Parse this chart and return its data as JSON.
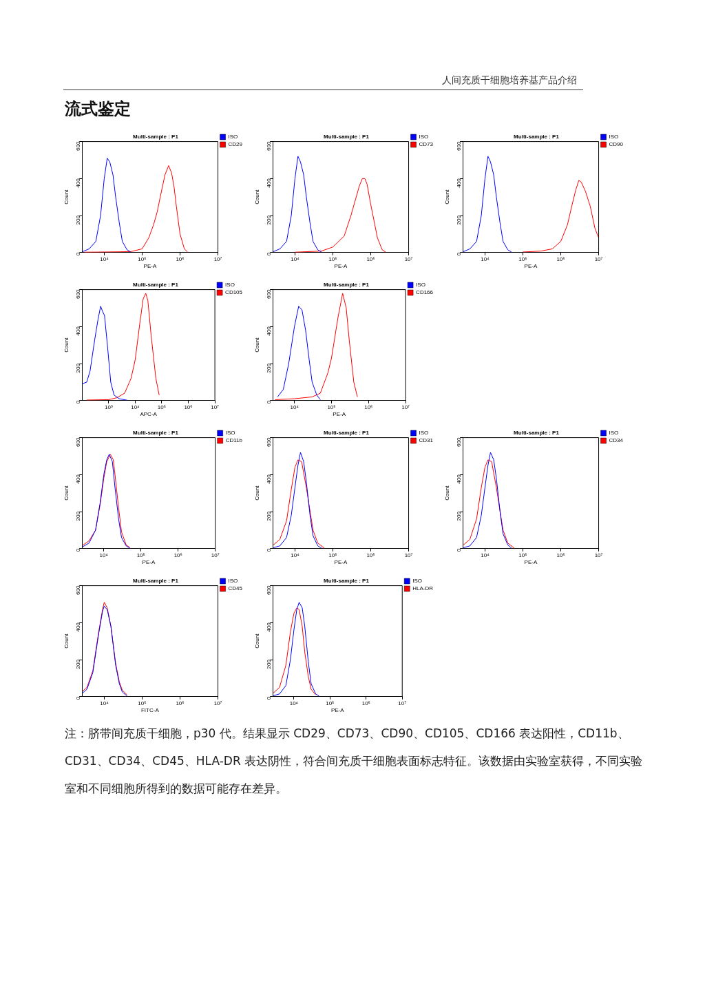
{
  "chart_data": [
    {
      "type": "line",
      "title": "Multi-sample : P1",
      "xlabel": "PE-A",
      "ylabel": "Count",
      "log": "x",
      "legend": "right",
      "grid": false,
      "marker": "none",
      "xlim": [
        2600,
        10000000
      ],
      "ylim": [
        0,
        600
      ],
      "yticks": [
        0,
        200,
        400,
        600
      ],
      "xticks": [
        {
          "value": 10000,
          "label": "10⁴"
        },
        {
          "value": 100000,
          "label": "10⁵"
        },
        {
          "value": 1000000,
          "label": "10⁶"
        },
        {
          "value": 10000000,
          "label": "10⁷"
        }
      ],
      "annotations": [
        "人间充质干细胞培养基产品介绍",
        "流式鉴定"
      ],
      "series": [
        {
          "name": "ISO",
          "color": "#0000ff",
          "x": [
            2700,
            4000,
            6000,
            8000,
            10000,
            12000,
            14000,
            17000,
            20000,
            25000,
            30000,
            40000,
            50000
          ],
          "values": [
            5,
            20,
            60,
            200,
            400,
            510,
            490,
            420,
            300,
            160,
            60,
            15,
            3
          ]
        },
        {
          "name": "CD29",
          "color": "#ff0000",
          "x": [
            3000,
            10000,
            50000,
            100000,
            150000,
            200000,
            250000,
            300000,
            400000,
            500000,
            600000,
            700000,
            800000,
            1000000,
            1300000,
            1600000
          ],
          "values": [
            2,
            3,
            5,
            20,
            80,
            150,
            220,
            300,
            420,
            470,
            430,
            350,
            250,
            100,
            20,
            2
          ]
        }
      ]
    },
    {
      "type": "line",
      "title": "Multi-sample : P1",
      "xlabel": "PE-A",
      "ylabel": "Count",
      "log": "x",
      "legend": "right",
      "grid": false,
      "marker": "none",
      "xlim": [
        2600,
        10000000
      ],
      "ylim": [
        0,
        600
      ],
      "yticks": [
        0,
        200,
        400,
        600
      ],
      "xticks": [
        {
          "value": 10000,
          "label": "10⁴"
        },
        {
          "value": 100000,
          "label": "10⁵"
        },
        {
          "value": 1000000,
          "label": "10⁶"
        },
        {
          "value": 10000000,
          "label": "10⁷"
        }
      ],
      "series": [
        {
          "name": "ISO",
          "color": "#0000ff",
          "x": [
            2700,
            4000,
            6000,
            8000,
            10000,
            12000,
            14000,
            17000,
            20000,
            25000,
            30000,
            40000,
            50000
          ],
          "values": [
            5,
            20,
            60,
            200,
            400,
            520,
            490,
            420,
            300,
            160,
            60,
            15,
            3
          ]
        },
        {
          "name": "CD73",
          "color": "#ff0000",
          "x": [
            10000,
            50000,
            100000,
            200000,
            300000,
            400000,
            500000,
            600000,
            700000,
            800000,
            1000000,
            1500000,
            2000000,
            2500000
          ],
          "values": [
            2,
            8,
            30,
            90,
            200,
            290,
            360,
            400,
            400,
            370,
            260,
            80,
            15,
            2
          ]
        }
      ]
    },
    {
      "type": "line",
      "title": "Multi-sample : P1",
      "xlabel": "PE-A",
      "ylabel": "Count",
      "log": "x",
      "legend": "right",
      "grid": false,
      "marker": "none",
      "xlim": [
        2600,
        10000000
      ],
      "ylim": [
        0,
        600
      ],
      "yticks": [
        0,
        200,
        400,
        600
      ],
      "xticks": [
        {
          "value": 10000,
          "label": "10⁴"
        },
        {
          "value": 100000,
          "label": "10⁵"
        },
        {
          "value": 1000000,
          "label": "10⁶"
        },
        {
          "value": 10000000,
          "label": "10⁷"
        }
      ],
      "series": [
        {
          "name": "ISO",
          "color": "#0000ff",
          "x": [
            2700,
            4000,
            6000,
            8000,
            10000,
            12000,
            14000,
            17000,
            20000,
            25000,
            30000,
            40000,
            50000
          ],
          "values": [
            5,
            20,
            60,
            200,
            400,
            520,
            490,
            420,
            300,
            160,
            60,
            15,
            3
          ]
        },
        {
          "name": "CD90",
          "color": "#ff0000",
          "x": [
            100000,
            300000,
            600000,
            1000000,
            1500000,
            2000000,
            2500000,
            3000000,
            3500000,
            4500000,
            6000000,
            8000000,
            10000000
          ],
          "values": [
            3,
            8,
            20,
            60,
            150,
            260,
            340,
            390,
            380,
            330,
            250,
            130,
            80
          ]
        }
      ]
    },
    {
      "type": "line",
      "title": "Multi-sample : P1",
      "xlabel": "APC-A",
      "ylabel": "Count",
      "log": "x",
      "legend": "right",
      "grid": false,
      "marker": "none",
      "xlim": [
        100,
        10000000
      ],
      "ylim": [
        0,
        600
      ],
      "yticks": [
        0,
        200,
        400,
        600
      ],
      "xticks": [
        {
          "value": 1000,
          "label": "10³"
        },
        {
          "value": 10000,
          "label": "10⁴"
        },
        {
          "value": 100000,
          "label": "10⁵"
        },
        {
          "value": 1000000,
          "label": "10⁶"
        },
        {
          "value": 10000000,
          "label": "10⁷"
        }
      ],
      "series": [
        {
          "name": "ISO",
          "color": "#0000ff",
          "x": [
            100,
            150,
            200,
            300,
            400,
            500,
            600,
            700,
            900,
            1200,
            1600,
            2500,
            5000
          ],
          "values": [
            90,
            100,
            160,
            330,
            440,
            510,
            480,
            460,
            300,
            100,
            30,
            10,
            2
          ]
        },
        {
          "name": "CD105",
          "color": "#ff0000",
          "x": [
            150,
            1000,
            2000,
            4000,
            7000,
            10000,
            15000,
            20000,
            25000,
            30000,
            40000,
            60000,
            80000
          ],
          "values": [
            3,
            5,
            15,
            40,
            120,
            220,
            420,
            550,
            580,
            540,
            350,
            120,
            30
          ]
        }
      ]
    },
    {
      "type": "line",
      "title": "Multi-sample : P1",
      "xlabel": "PE-A",
      "ylabel": "Count",
      "log": "x",
      "legend": "right",
      "grid": false,
      "marker": "none",
      "xlim": [
        2600,
        10000000
      ],
      "ylim": [
        0,
        600
      ],
      "yticks": [
        0,
        200,
        400,
        600
      ],
      "xticks": [
        {
          "value": 10000,
          "label": "10⁴"
        },
        {
          "value": 100000,
          "label": "10⁵"
        },
        {
          "value": 1000000,
          "label": "10⁶"
        },
        {
          "value": 10000000,
          "label": "10⁷"
        }
      ],
      "series": [
        {
          "name": "ISO",
          "color": "#0000ff",
          "x": [
            3500,
            5000,
            7000,
            10000,
            13000,
            16000,
            20000,
            25000,
            30000,
            40000,
            50000
          ],
          "values": [
            20,
            60,
            200,
            400,
            510,
            490,
            380,
            220,
            100,
            30,
            5
          ]
        },
        {
          "name": "CD166",
          "color": "#ff0000",
          "x": [
            3000,
            10000,
            30000,
            50000,
            80000,
            100000,
            150000,
            200000,
            250000,
            300000,
            400000,
            500000
          ],
          "values": [
            5,
            10,
            20,
            40,
            150,
            230,
            450,
            580,
            500,
            330,
            100,
            20
          ]
        }
      ]
    },
    {
      "type": "line",
      "title": "Multi-sample : P1",
      "xlabel": "PE-A",
      "ylabel": "Count",
      "log": "x",
      "legend": "right",
      "grid": false,
      "marker": "none",
      "xlim": [
        2600,
        10000000
      ],
      "ylim": [
        0,
        600
      ],
      "yticks": [
        0,
        200,
        400,
        600
      ],
      "xticks": [
        {
          "value": 10000,
          "label": "10⁴"
        },
        {
          "value": 100000,
          "label": "10⁵"
        },
        {
          "value": 1000000,
          "label": "10⁶"
        },
        {
          "value": 10000000,
          "label": "10⁷"
        }
      ],
      "series": [
        {
          "name": "ISO",
          "color": "#0000ff",
          "x": [
            2700,
            4000,
            6000,
            8000,
            10000,
            12000,
            14000,
            17000,
            20000,
            25000,
            30000,
            40000,
            50000
          ],
          "values": [
            10,
            30,
            100,
            250,
            400,
            480,
            510,
            470,
            330,
            160,
            60,
            15,
            3
          ]
        },
        {
          "name": "CD11b",
          "color": "#ff0000",
          "x": [
            2700,
            4000,
            6000,
            8000,
            10000,
            12000,
            15000,
            18000,
            20000,
            25000,
            30000,
            40000,
            50000
          ],
          "values": [
            18,
            42,
            100,
            240,
            380,
            470,
            510,
            480,
            400,
            220,
            90,
            20,
            6
          ]
        }
      ]
    },
    {
      "type": "line",
      "title": "Multi-sample : P1",
      "xlabel": "PE-A",
      "ylabel": "Count",
      "log": "x",
      "legend": "right",
      "grid": false,
      "marker": "none",
      "xlim": [
        2600,
        10000000
      ],
      "ylim": [
        0,
        600
      ],
      "yticks": [
        0,
        200,
        400,
        600
      ],
      "xticks": [
        {
          "value": 10000,
          "label": "10⁴"
        },
        {
          "value": 100000,
          "label": "10⁵"
        },
        {
          "value": 1000000,
          "label": "10⁶"
        },
        {
          "value": 10000000,
          "label": "10⁷"
        }
      ],
      "series": [
        {
          "name": "ISO",
          "color": "#0000ff",
          "x": [
            2700,
            4000,
            6000,
            8000,
            10000,
            12000,
            14000,
            17000,
            20000,
            25000,
            30000,
            40000,
            50000
          ],
          "values": [
            5,
            15,
            60,
            180,
            330,
            450,
            520,
            470,
            360,
            180,
            70,
            15,
            3
          ]
        },
        {
          "name": "CD31",
          "color": "#ff0000",
          "x": [
            2700,
            4000,
            6000,
            8000,
            10000,
            12000,
            15000,
            20000,
            30000,
            40000,
            60000
          ],
          "values": [
            20,
            50,
            150,
            320,
            440,
            480,
            470,
            330,
            100,
            30,
            2
          ]
        }
      ]
    },
    {
      "type": "line",
      "title": "Multi-sample : P1",
      "xlabel": "PE-A",
      "ylabel": "Count",
      "log": "x",
      "legend": "right",
      "grid": false,
      "marker": "none",
      "xlim": [
        2600,
        10000000
      ],
      "ylim": [
        0,
        600
      ],
      "yticks": [
        0,
        200,
        400,
        600
      ],
      "xticks": [
        {
          "value": 10000,
          "label": "10⁴"
        },
        {
          "value": 100000,
          "label": "10⁵"
        },
        {
          "value": 1000000,
          "label": "10⁶"
        },
        {
          "value": 10000000,
          "label": "10⁷"
        }
      ],
      "series": [
        {
          "name": "ISO",
          "color": "#0000ff",
          "x": [
            2700,
            4000,
            6000,
            8000,
            10000,
            12000,
            14000,
            17000,
            20000,
            25000,
            30000,
            40000,
            50000
          ],
          "values": [
            5,
            15,
            60,
            180,
            330,
            450,
            520,
            480,
            380,
            200,
            80,
            20,
            3
          ]
        },
        {
          "name": "CD34",
          "color": "#ff0000",
          "x": [
            2700,
            4000,
            6000,
            8000,
            10000,
            12000,
            15000,
            20000,
            30000,
            40000,
            60000
          ],
          "values": [
            20,
            50,
            160,
            330,
            440,
            480,
            470,
            330,
            100,
            30,
            2
          ]
        }
      ]
    },
    {
      "type": "line",
      "title": "Multi-sample : P1",
      "xlabel": "FITC-A",
      "ylabel": "Count",
      "log": "x",
      "legend": "right",
      "grid": false,
      "marker": "none",
      "xlim": [
        2600,
        10000000
      ],
      "ylim": [
        0,
        600
      ],
      "yticks": [
        0,
        200,
        400,
        600
      ],
      "xticks": [
        {
          "value": 10000,
          "label": "10⁴"
        },
        {
          "value": 100000,
          "label": "10⁵"
        },
        {
          "value": 1000000,
          "label": "10⁶"
        },
        {
          "value": 10000000,
          "label": "10⁷"
        }
      ],
      "series": [
        {
          "name": "ISO",
          "color": "#0000ff",
          "x": [
            2700,
            3500,
            5000,
            7000,
            9000,
            10000,
            12000,
            15000,
            20000,
            25000,
            30000,
            40000
          ],
          "values": [
            20,
            40,
            130,
            330,
            460,
            490,
            470,
            380,
            170,
            70,
            25,
            4
          ]
        },
        {
          "name": "CD45",
          "color": "#ff0000",
          "x": [
            2700,
            3500,
            5000,
            7000,
            9000,
            10000,
            12000,
            15000,
            20000,
            25000,
            30000,
            40000
          ],
          "values": [
            30,
            50,
            140,
            340,
            470,
            510,
            480,
            380,
            180,
            80,
            35,
            10
          ]
        }
      ]
    },
    {
      "type": "line",
      "title": "Multi-sample : P1",
      "xlabel": "PE-A",
      "ylabel": "Count",
      "log": "x",
      "legend": "right",
      "grid": false,
      "marker": "none",
      "xlim": [
        2600,
        10000000
      ],
      "ylim": [
        0,
        600
      ],
      "yticks": [
        0,
        200,
        400,
        600
      ],
      "xticks": [
        {
          "value": 10000,
          "label": "10⁴"
        },
        {
          "value": 100000,
          "label": "10⁵"
        },
        {
          "value": 1000000,
          "label": "10⁶"
        },
        {
          "value": 10000000,
          "label": "10⁷"
        }
      ],
      "annotations": [
        "注：脐带间充质干细胞，p30 代。结果显示 CD29、CD73、CD90、CD105、CD166 表达阳性，CD11b、CD31、CD34、CD45、HLA-DR 表达阴性，符合间充质干细胞表面标志特征。该数据由实验室获得，不同实验室和不同细胞所得到的数据可能存在差异。"
      ],
      "series": [
        {
          "name": "ISO",
          "color": "#0000ff",
          "x": [
            2700,
            4000,
            6000,
            8000,
            10000,
            12000,
            14000,
            17000,
            20000,
            25000,
            30000,
            40000,
            50000
          ],
          "values": [
            5,
            15,
            60,
            200,
            360,
            470,
            510,
            480,
            380,
            190,
            70,
            15,
            3
          ]
        },
        {
          "name": "HLA-DR",
          "color": "#ff0000",
          "x": [
            2700,
            4000,
            6000,
            8000,
            10000,
            12000,
            14000,
            17000,
            20000,
            25000,
            30000,
            40000
          ],
          "values": [
            20,
            50,
            170,
            350,
            450,
            480,
            470,
            380,
            240,
            110,
            40,
            10
          ]
        }
      ]
    }
  ]
}
